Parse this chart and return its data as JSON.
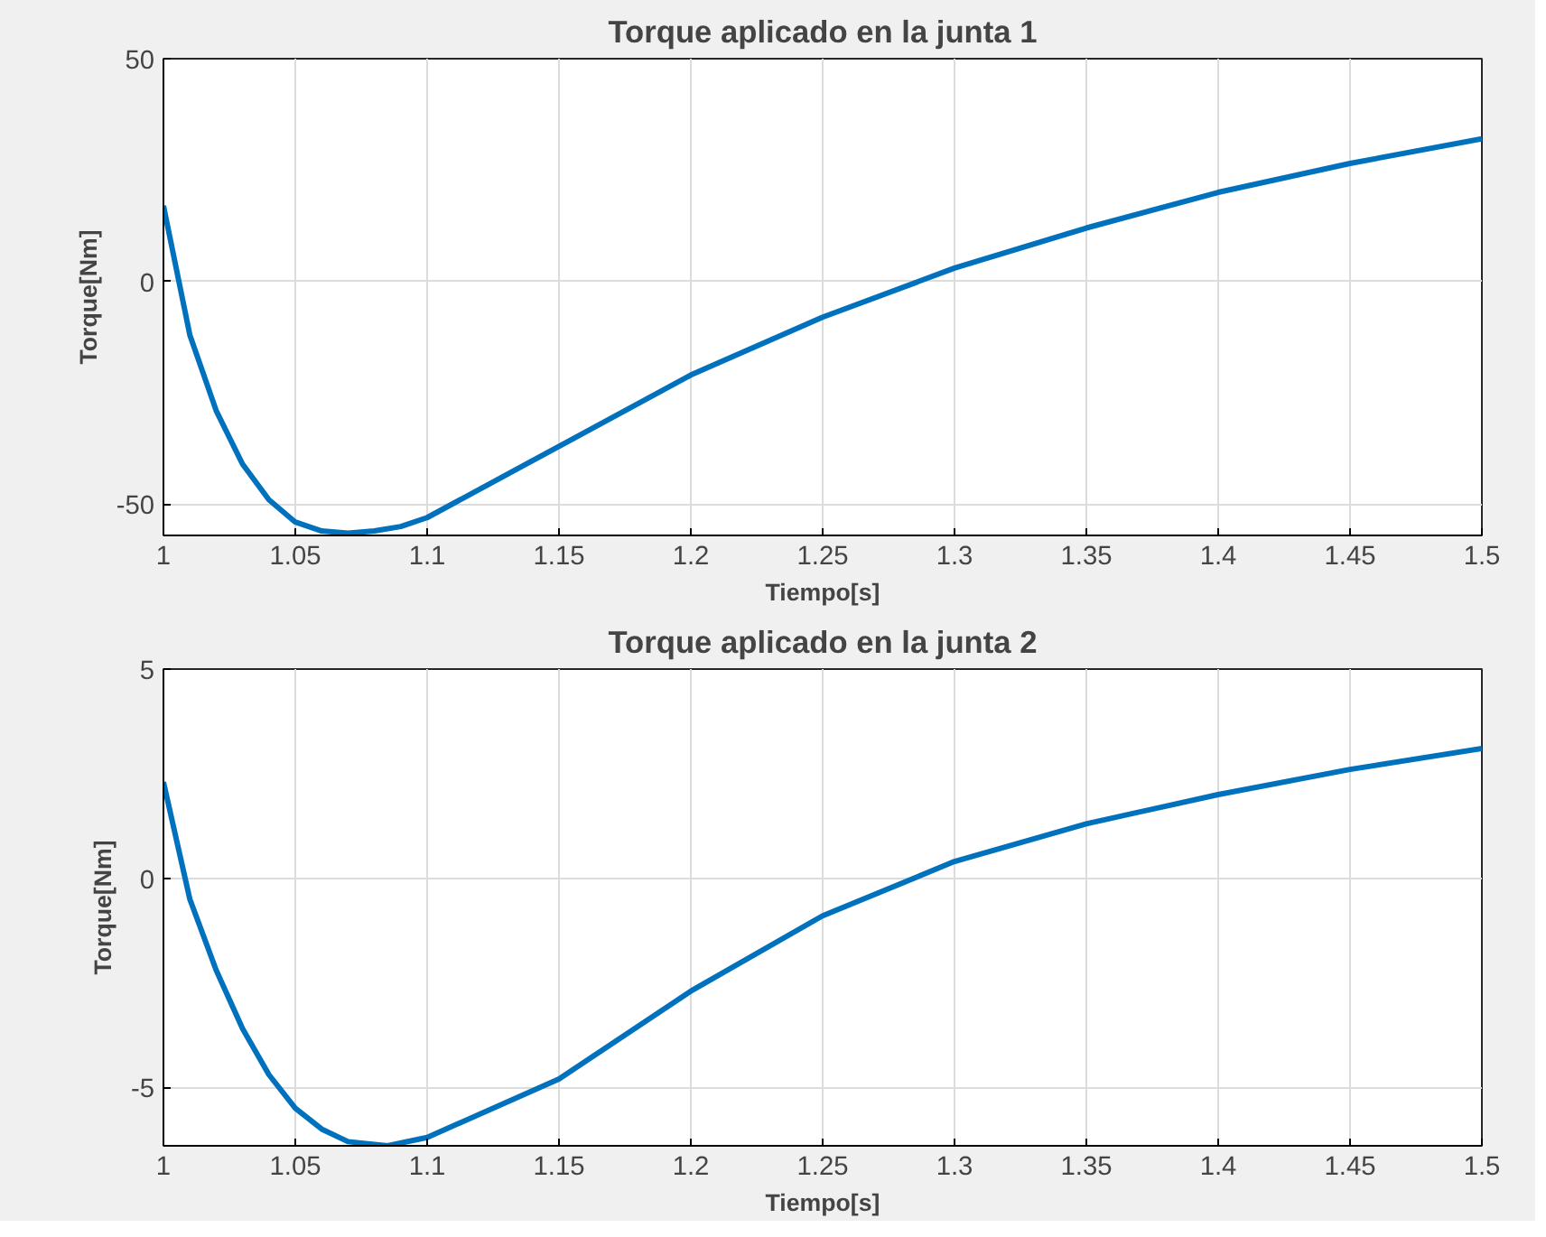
{
  "chart_data": [
    {
      "type": "line",
      "title": "Torque aplicado en la junta 1",
      "xlabel": "Tiempo[s]",
      "ylabel": "Torque[Nm]",
      "xlim": [
        1,
        1.5
      ],
      "ylim": [
        -57,
        50
      ],
      "xticks": [
        1,
        1.05,
        1.1,
        1.15,
        1.2,
        1.25,
        1.3,
        1.35,
        1.4,
        1.45,
        1.5
      ],
      "yticks": [
        -50,
        0,
        50
      ],
      "grid": true,
      "x": [
        1,
        1.01,
        1.02,
        1.03,
        1.04,
        1.05,
        1.06,
        1.07,
        1.08,
        1.09,
        1.1,
        1.15,
        1.2,
        1.25,
        1.3,
        1.35,
        1.4,
        1.45,
        1.5
      ],
      "series": [
        {
          "color": "#0072bd",
          "values": [
            17,
            -12,
            -29,
            -41,
            -49,
            -54,
            -56,
            -56.5,
            -56,
            -55,
            -53,
            -37,
            -21,
            -8,
            3,
            12,
            20,
            26.5,
            32
          ]
        }
      ]
    },
    {
      "type": "line",
      "title": "Torque aplicado en la junta 2",
      "xlabel": "Tiempo[s]",
      "ylabel": "Torque[Nm]",
      "xlim": [
        1,
        1.5
      ],
      "ylim": [
        -6.4,
        5
      ],
      "xticks": [
        1,
        1.05,
        1.1,
        1.15,
        1.2,
        1.25,
        1.3,
        1.35,
        1.4,
        1.45,
        1.5
      ],
      "yticks": [
        -5,
        0,
        5
      ],
      "grid": true,
      "x": [
        1,
        1.01,
        1.02,
        1.03,
        1.04,
        1.05,
        1.06,
        1.07,
        1.085,
        1.1,
        1.15,
        1.2,
        1.25,
        1.3,
        1.35,
        1.4,
        1.45,
        1.5
      ],
      "series": [
        {
          "color": "#0072bd",
          "values": [
            2.3,
            -0.5,
            -2.2,
            -3.6,
            -4.7,
            -5.5,
            -6.0,
            -6.3,
            -6.4,
            -6.2,
            -4.8,
            -2.7,
            -0.9,
            0.4,
            1.3,
            2.0,
            2.6,
            3.1
          ]
        }
      ]
    }
  ]
}
